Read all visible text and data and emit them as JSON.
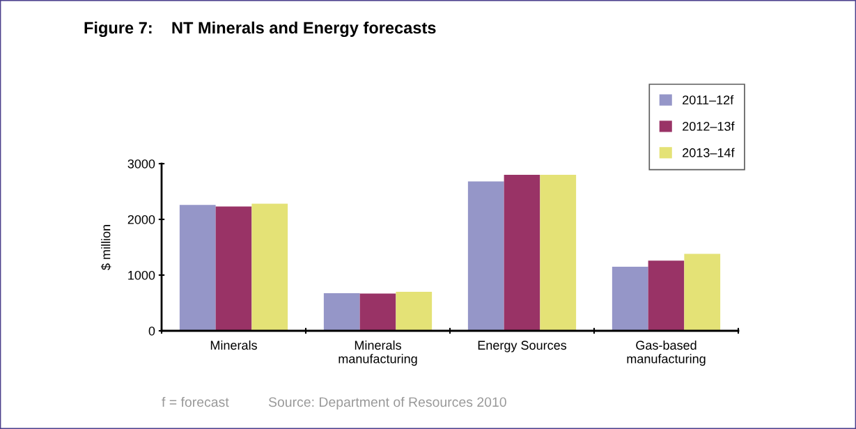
{
  "chart_data": {
    "type": "bar",
    "title": "Figure 7:    NT Minerals and Energy forecasts",
    "ylabel": "$ million",
    "categories": [
      "Minerals",
      "Minerals\nmanufacturing",
      "Energy Sources",
      "Gas-based\nmanufacturing"
    ],
    "series": [
      {
        "name": "2011–12f",
        "color": "#9596c8",
        "values": [
          2260,
          675,
          2680,
          1150
        ]
      },
      {
        "name": "2012–13f",
        "color": "#993366",
        "values": [
          2230,
          670,
          2800,
          1260
        ]
      },
      {
        "name": "2013–14f",
        "color": "#e4e276",
        "values": [
          2280,
          700,
          2800,
          1380
        ]
      }
    ],
    "ylim": [
      0,
      3000
    ],
    "yticks": [
      0,
      1000,
      2000,
      3000
    ],
    "grid": false,
    "legend": "top right",
    "annotations": [
      "f = forecast",
      "Source: Department of Resources 2010"
    ]
  }
}
